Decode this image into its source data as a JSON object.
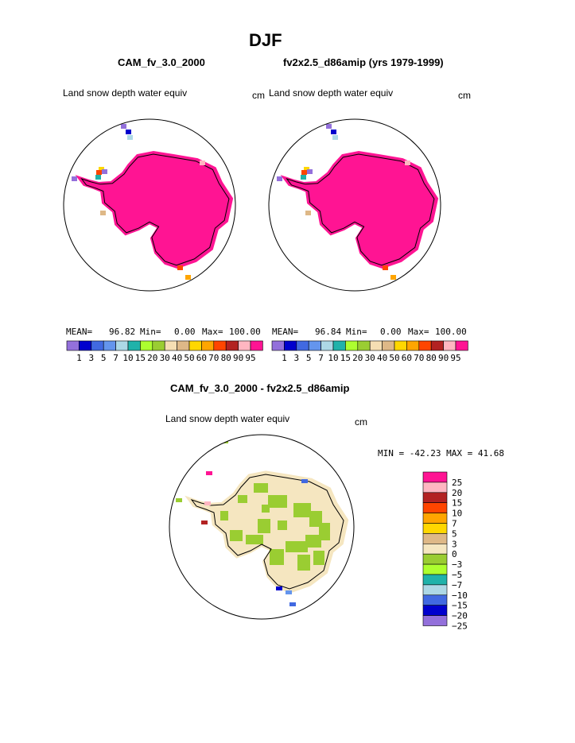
{
  "page": {
    "main_title": "DJF",
    "left_title": "CAM_fv_3.0_2000",
    "right_title": "fv2x2.5_d86amip (yrs 1979-1999)",
    "diff_title": "CAM_fv_3.0_2000 - fv2x2.5_d86amip",
    "field_label": "Land snow depth water equiv",
    "units": "cm"
  },
  "chart_data": [
    {
      "type": "heatmap",
      "projection": "south polar stereographic",
      "title": "CAM_fv_3.0_2000",
      "field": "Land snow depth water equiv",
      "units": "cm",
      "stats": {
        "mean": "96.82",
        "min": "0.00",
        "max": "100.00"
      },
      "colorbar": {
        "orientation": "horizontal",
        "levels": [
          "1",
          "3",
          "5",
          "7",
          "10",
          "15",
          "20",
          "30",
          "40",
          "50",
          "60",
          "70",
          "80",
          "90",
          "95"
        ],
        "colors": [
          "#9370DB",
          "#0000CD",
          "#4169E1",
          "#6495ED",
          "#ADD8E6",
          "#20B2AA",
          "#ADFF2F",
          "#9ACD32",
          "#F5DEB3",
          "#DEB887",
          "#FFD700",
          "#FFA500",
          "#FF4500",
          "#B22222",
          "#FFB6C1",
          "#FF1493"
        ]
      }
    },
    {
      "type": "heatmap",
      "projection": "south polar stereographic",
      "title": "fv2x2.5_d86amip (yrs 1979-1999)",
      "field": "Land snow depth water equiv",
      "units": "cm",
      "stats": {
        "mean": "96.84",
        "min": "0.00",
        "max": "100.00"
      },
      "colorbar": {
        "orientation": "horizontal",
        "levels": [
          "1",
          "3",
          "5",
          "7",
          "10",
          "15",
          "20",
          "30",
          "40",
          "50",
          "60",
          "70",
          "80",
          "90",
          "95"
        ],
        "colors": [
          "#9370DB",
          "#0000CD",
          "#4169E1",
          "#6495ED",
          "#ADD8E6",
          "#20B2AA",
          "#ADFF2F",
          "#9ACD32",
          "#F5DEB3",
          "#DEB887",
          "#FFD700",
          "#FFA500",
          "#FF4500",
          "#B22222",
          "#FFB6C1",
          "#FF1493"
        ]
      }
    },
    {
      "type": "heatmap",
      "projection": "south polar stereographic",
      "title": "CAM_fv_3.0_2000 - fv2x2.5_d86amip",
      "field": "Land snow depth water equiv",
      "units": "cm",
      "stats_text": "MIN = -42.23 MAX =  41.68",
      "colorbar": {
        "orientation": "vertical",
        "levels": [
          "25",
          "20",
          "15",
          "10",
          "7",
          "5",
          "3",
          "0",
          "−3",
          "−5",
          "−7",
          "−10",
          "−15",
          "−20",
          "−25"
        ],
        "colors": [
          "#FF1493",
          "#FFB6C1",
          "#B22222",
          "#FF4500",
          "#FFA500",
          "#FFD700",
          "#DEB887",
          "#F5E6C0",
          "#9ACD32",
          "#ADFF2F",
          "#20B2AA",
          "#ADD8E6",
          "#4169E1",
          "#0000CD",
          "#9370DB"
        ]
      }
    }
  ]
}
